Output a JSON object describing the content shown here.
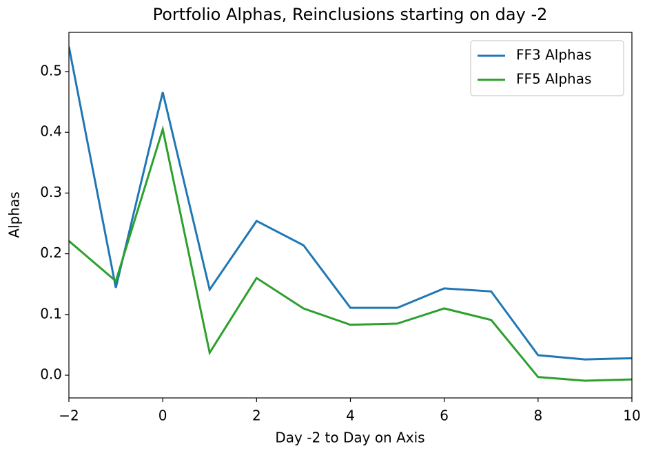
{
  "chart_data": {
    "type": "line",
    "title": "Portfolio Alphas, Reinclusions starting on day -2",
    "x_label": "Day -2 to Day on Axis",
    "y_label": "Alphas",
    "x": [
      -2,
      -1,
      0,
      1,
      2,
      3,
      4,
      5,
      6,
      7,
      8,
      9,
      10
    ],
    "series": [
      {
        "name": "FF3 Alphas",
        "color": "#1f77b4",
        "values": [
          0.541,
          0.144,
          0.466,
          0.141,
          0.254,
          0.214,
          0.111,
          0.111,
          0.143,
          0.138,
          0.033,
          0.026,
          0.028
        ]
      },
      {
        "name": "FF5 Alphas",
        "color": "#2ca02c",
        "values": [
          0.221,
          0.155,
          0.405,
          0.037,
          0.16,
          0.11,
          0.083,
          0.085,
          0.11,
          0.091,
          -0.003,
          -0.009,
          -0.007
        ]
      }
    ],
    "xlim": [
      -2,
      10
    ],
    "xticks": [
      {
        "value": -2,
        "label": "−2"
      },
      0,
      2,
      4,
      6,
      8,
      10
    ],
    "ylim": [
      -0.0374,
      0.5646
    ],
    "yticks": [
      {
        "value": 0,
        "label": "0.0"
      },
      0.1,
      0.2,
      0.3,
      0.4,
      0.5
    ],
    "legend": "upper right"
  }
}
